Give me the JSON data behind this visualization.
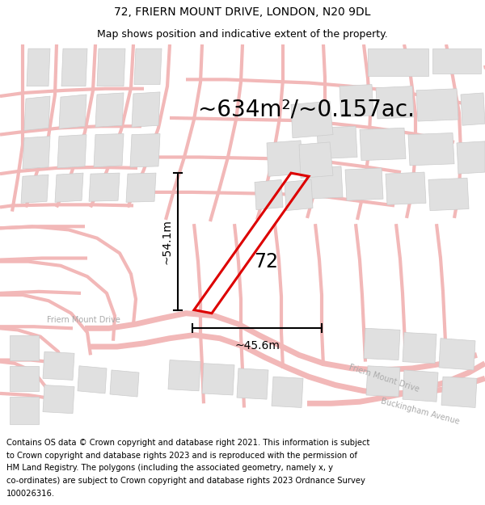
{
  "title_line1": "72, FRIERN MOUNT DRIVE, LONDON, N20 9DL",
  "title_line2": "Map shows position and indicative extent of the property.",
  "area_text": "~634m²/~0.157ac.",
  "label_number": "72",
  "dim_height": "~54.1m",
  "dim_width": "~45.6m",
  "footer_lines": [
    "Contains OS data © Crown copyright and database right 2021. This information is subject",
    "to Crown copyright and database rights 2023 and is reproduced with the permission of",
    "HM Land Registry. The polygons (including the associated geometry, namely x, y",
    "co-ordinates) are subject to Crown copyright and database rights 2023 Ordnance Survey",
    "100026316."
  ],
  "map_bg": "#ffffff",
  "road_color": "#f2b8b8",
  "building_color": "#e0e0e0",
  "building_edge": "#cccccc",
  "plot_color": "#dd0000",
  "title_fontsize": 10,
  "subtitle_fontsize": 9,
  "area_fontsize": 20,
  "label_fontsize": 17,
  "dim_fontsize": 10,
  "footer_fontsize": 7.2,
  "road_label_fontsize": 7
}
